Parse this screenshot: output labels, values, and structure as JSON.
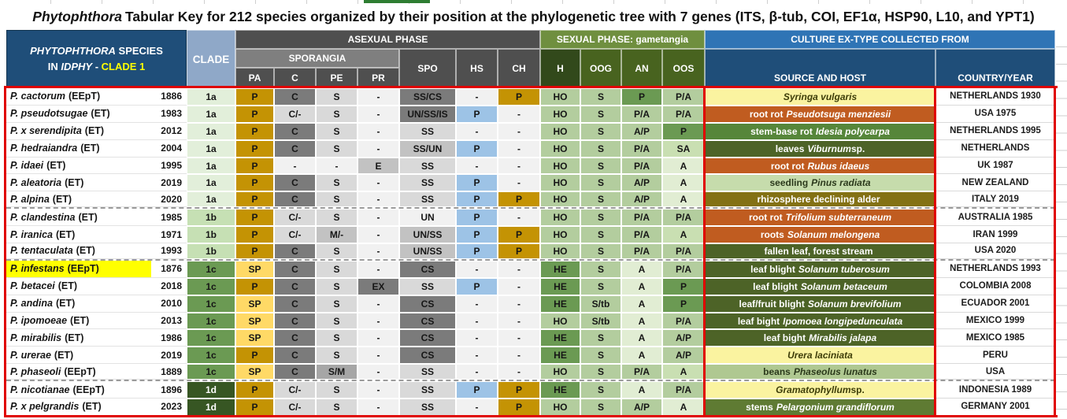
{
  "title": {
    "italic": "Phytophthora",
    "rest": "Tabular Key for 212 species organized by their position at the phylogenetic tree with 7 genes (ITS, β-tub, COI, EF1α, HSP90, L10, and YPT1)"
  },
  "header": {
    "species_block": {
      "line1_italic": "PHYTOPHTHORA",
      "line1_rest": " SPECIES",
      "line2_pre": "IN ",
      "line2_italic": "IDPHY",
      "line2_sep": " - ",
      "line2_clade": "CLADE 1"
    },
    "clade": "CLADE",
    "asexual": "ASEXUAL PHASE",
    "sporangia": "SPORANGIA",
    "cols": {
      "pa": "PA",
      "c": "C",
      "pe": "PE",
      "pr": "PR",
      "spo": "SPO",
      "hs": "HS",
      "ch": "CH",
      "h": "H",
      "oog": "OOG",
      "an": "AN",
      "oos": "OOS"
    },
    "sexual": "SEXUAL PHASE: gametangia",
    "culture": "CULTURE EX-TYPE COLLECTED FROM",
    "source": "SOURCE AND HOST",
    "country": "COUNTRY/YEAR"
  },
  "colors": {
    "red": "#E00000",
    "hl": "#FFFF00",
    "navy": "#1F4E79",
    "steel": "#2F74B5",
    "cladehdr": "#8FA8C8",
    "gdark": "#4F4F4F",
    "gmid": "#7F7F7F",
    "sexband": "#6F8F3F",
    "sexsub": "#48631F",
    "sexh": "#32491B",
    "gold": "#C49304"
  },
  "rows": [
    {
      "name": "P. cactorum",
      "tag": "(EEpT)",
      "year": "1886",
      "clade": "1a",
      "hl": false,
      "sep": false,
      "pa": [
        "P",
        "gold"
      ],
      "c": [
        "C",
        "g1"
      ],
      "pe": [
        "S",
        "g4"
      ],
      "pr": [
        "-",
        "g5"
      ],
      "spo": [
        "SS/CS",
        "g1"
      ],
      "hs": [
        "-",
        "g5"
      ],
      "ch": [
        "P",
        "gold"
      ],
      "h": [
        "HO",
        "gm"
      ],
      "oog": [
        "S",
        "gm"
      ],
      "an": [
        "P",
        "gd"
      ],
      "oos": [
        "P/A",
        "gm"
      ],
      "host": {
        "pre": "",
        "it": "Syringa vulgaris",
        "post": "",
        "style": "h-yel"
      },
      "country": "NETHERLANDS 1930"
    },
    {
      "name": "P. pseudotsugae",
      "tag": "(ET)",
      "year": "1983",
      "clade": "1a",
      "hl": false,
      "sep": false,
      "pa": [
        "P",
        "gold"
      ],
      "c": [
        "C/-",
        "g4"
      ],
      "pe": [
        "S",
        "g4"
      ],
      "pr": [
        "-",
        "g5"
      ],
      "spo": [
        "UN/SS/IS",
        "g1"
      ],
      "hs": [
        "P",
        "blue"
      ],
      "ch": [
        "-",
        "g5"
      ],
      "h": [
        "HO",
        "gm"
      ],
      "oog": [
        "S",
        "gm"
      ],
      "an": [
        "P/A",
        "gm"
      ],
      "oos": [
        "P/A",
        "gm"
      ],
      "host": {
        "pre": "root rot ",
        "it": "Pseudotsuga menziesii",
        "post": "",
        "style": "h-rust"
      },
      "country": "USA 1975"
    },
    {
      "name": "P. x serendipita",
      "tag": "(ET)",
      "year": "2012",
      "clade": "1a",
      "hl": false,
      "sep": false,
      "pa": [
        "P",
        "gold"
      ],
      "c": [
        "C",
        "g1"
      ],
      "pe": [
        "S",
        "g4"
      ],
      "pr": [
        "-",
        "g5"
      ],
      "spo": [
        "SS",
        "g4"
      ],
      "hs": [
        "-",
        "g5"
      ],
      "ch": [
        "-",
        "g5"
      ],
      "h": [
        "HO",
        "gm"
      ],
      "oog": [
        "S",
        "gm"
      ],
      "an": [
        "A/P",
        "gm"
      ],
      "oos": [
        "P",
        "gd"
      ],
      "host": {
        "pre": "stem-base rot ",
        "it": "Idesia polycarpa",
        "post": "",
        "style": "h-gmed"
      },
      "country": "NETHERLANDS 1995"
    },
    {
      "name": "P. hedraiandra",
      "tag": "(ET)",
      "year": "2004",
      "clade": "1a",
      "hl": false,
      "sep": false,
      "pa": [
        "P",
        "gold"
      ],
      "c": [
        "C",
        "g1"
      ],
      "pe": [
        "S",
        "g4"
      ],
      "pr": [
        "-",
        "g5"
      ],
      "spo": [
        "SS/UN",
        "g3"
      ],
      "hs": [
        "P",
        "blue"
      ],
      "ch": [
        "-",
        "g5"
      ],
      "h": [
        "HO",
        "gm"
      ],
      "oog": [
        "S",
        "gm"
      ],
      "an": [
        "P/A",
        "gm"
      ],
      "oos": [
        "SA",
        "gl"
      ],
      "host": {
        "pre": "leaves ",
        "it": "Viburnum",
        "post": " sp.",
        "style": "h-gdk"
      },
      "country": "NETHERLANDS"
    },
    {
      "name": "P. idaei",
      "tag": "(ET)",
      "year": "1995",
      "clade": "1a",
      "hl": false,
      "sep": false,
      "pa": [
        "P",
        "gold"
      ],
      "c": [
        "-",
        "g5"
      ],
      "pe": [
        "-",
        "g5"
      ],
      "pr": [
        "E",
        "g3"
      ],
      "spo": [
        "SS",
        "g4"
      ],
      "hs": [
        "-",
        "g5"
      ],
      "ch": [
        "-",
        "g5"
      ],
      "h": [
        "HO",
        "gm"
      ],
      "oog": [
        "S",
        "gm"
      ],
      "an": [
        "P/A",
        "gm"
      ],
      "oos": [
        "A",
        "gx"
      ],
      "host": {
        "pre": "root rot ",
        "it": "Rubus idaeus",
        "post": "",
        "style": "h-rust"
      },
      "country": "UK 1987"
    },
    {
      "name": "P. aleatoria",
      "tag": "(ET)",
      "year": "2019",
      "clade": "1a",
      "hl": false,
      "sep": false,
      "pa": [
        "P",
        "gold"
      ],
      "c": [
        "C",
        "g1"
      ],
      "pe": [
        "S",
        "g4"
      ],
      "pr": [
        "-",
        "g5"
      ],
      "spo": [
        "SS",
        "g4"
      ],
      "hs": [
        "P",
        "blue"
      ],
      "ch": [
        "-",
        "g5"
      ],
      "h": [
        "HO",
        "gm"
      ],
      "oog": [
        "S",
        "gm"
      ],
      "an": [
        "A/P",
        "gm"
      ],
      "oos": [
        "A",
        "gx"
      ],
      "host": {
        "pre": "seedling ",
        "it": "Pinus radiata",
        "post": "",
        "style": "h-glt"
      },
      "country": "NEW ZEALAND"
    },
    {
      "name": "P. alpina",
      "tag": "(ET)",
      "year": "2020",
      "clade": "1a",
      "hl": false,
      "sep": true,
      "pa": [
        "P",
        "gold"
      ],
      "c": [
        "C",
        "g1"
      ],
      "pe": [
        "S",
        "g4"
      ],
      "pr": [
        "-",
        "g5"
      ],
      "spo": [
        "SS",
        "g4"
      ],
      "hs": [
        "P",
        "blue"
      ],
      "ch": [
        "P",
        "gold"
      ],
      "h": [
        "HO",
        "gm"
      ],
      "oog": [
        "S",
        "gm"
      ],
      "an": [
        "A/P",
        "gm"
      ],
      "oos": [
        "A",
        "gx"
      ],
      "host": {
        "pre": "rhizosphere declining alder",
        "it": "",
        "post": "",
        "style": "h-olv"
      },
      "country": "ITALY 2019"
    },
    {
      "name": "P. clandestina",
      "tag": "(ET)",
      "year": "1985",
      "clade": "1b",
      "hl": false,
      "sep": false,
      "pa": [
        "P",
        "gold"
      ],
      "c": [
        "C/-",
        "g4"
      ],
      "pe": [
        "S",
        "g4"
      ],
      "pr": [
        "-",
        "g5"
      ],
      "spo": [
        "UN",
        "g5"
      ],
      "hs": [
        "P",
        "blue"
      ],
      "ch": [
        "-",
        "g5"
      ],
      "h": [
        "HO",
        "gm"
      ],
      "oog": [
        "S",
        "gm"
      ],
      "an": [
        "P/A",
        "gm"
      ],
      "oos": [
        "P/A",
        "gm"
      ],
      "host": {
        "pre": "root rot ",
        "it": "Trifolium subterraneum",
        "post": "",
        "style": "h-rust"
      },
      "country": "AUSTRALIA 1985"
    },
    {
      "name": "P. iranica",
      "tag": "(ET)",
      "year": "1971",
      "clade": "1b",
      "hl": false,
      "sep": false,
      "pa": [
        "P",
        "gold"
      ],
      "c": [
        "C/-",
        "g4"
      ],
      "pe": [
        "M/-",
        "g3"
      ],
      "pr": [
        "-",
        "g5"
      ],
      "spo": [
        "UN/SS",
        "g3"
      ],
      "hs": [
        "P",
        "blue"
      ],
      "ch": [
        "P",
        "gold"
      ],
      "h": [
        "HO",
        "gm"
      ],
      "oog": [
        "S",
        "gm"
      ],
      "an": [
        "P/A",
        "gm"
      ],
      "oos": [
        "A",
        "gl"
      ],
      "host": {
        "pre": "roots ",
        "it": "Solanum melongena",
        "post": "",
        "style": "h-rust"
      },
      "country": "IRAN 1999"
    },
    {
      "name": "P. tentaculata",
      "tag": "(ET)",
      "year": "1993",
      "clade": "1b",
      "hl": false,
      "sep": true,
      "pa": [
        "P",
        "gold"
      ],
      "c": [
        "C",
        "g1"
      ],
      "pe": [
        "S",
        "g4"
      ],
      "pr": [
        "-",
        "g5"
      ],
      "spo": [
        "UN/SS",
        "g3"
      ],
      "hs": [
        "P",
        "blue"
      ],
      "ch": [
        "P",
        "gold"
      ],
      "h": [
        "HO",
        "gm"
      ],
      "oog": [
        "S",
        "gm"
      ],
      "an": [
        "P/A",
        "gm"
      ],
      "oos": [
        "P/A",
        "gm"
      ],
      "host": {
        "pre": "fallen leaf, forest stream",
        "it": "",
        "post": "",
        "style": "h-gdk"
      },
      "country": "USA 2020"
    },
    {
      "name": "P. infestans",
      "tag": "(EEpT)",
      "year": "1876",
      "clade": "1c",
      "hl": true,
      "sep": false,
      "pa": [
        "SP",
        "lgold"
      ],
      "c": [
        "C",
        "g1"
      ],
      "pe": [
        "S",
        "g4"
      ],
      "pr": [
        "-",
        "g5"
      ],
      "spo": [
        "CS",
        "g1"
      ],
      "hs": [
        "-",
        "g5"
      ],
      "ch": [
        "-",
        "g5"
      ],
      "h": [
        "HE",
        "gd"
      ],
      "oog": [
        "S",
        "gm"
      ],
      "an": [
        "A",
        "gx"
      ],
      "oos": [
        "P/A",
        "gm"
      ],
      "host": {
        "pre": "leaf blight ",
        "it": "Solanum tuberosum",
        "post": "",
        "style": "h-gdk"
      },
      "country": "NETHERLANDS 1993"
    },
    {
      "name": "P. betacei",
      "tag": "(ET)",
      "year": "2018",
      "clade": "1c",
      "hl": false,
      "sep": false,
      "pa": [
        "P",
        "gold"
      ],
      "c": [
        "C",
        "g1"
      ],
      "pe": [
        "S",
        "g4"
      ],
      "pr": [
        "EX",
        "g1"
      ],
      "spo": [
        "SS",
        "g4"
      ],
      "hs": [
        "P",
        "blue"
      ],
      "ch": [
        "-",
        "g5"
      ],
      "h": [
        "HE",
        "gd"
      ],
      "oog": [
        "S",
        "gm"
      ],
      "an": [
        "A",
        "gx"
      ],
      "oos": [
        "P",
        "gd"
      ],
      "host": {
        "pre": "leaf blight ",
        "it": "Solanum betaceum",
        "post": "",
        "style": "h-gdk"
      },
      "country": "COLOMBIA 2008"
    },
    {
      "name": "P. andina",
      "tag": "(ET)",
      "year": "2010",
      "clade": "1c",
      "hl": false,
      "sep": false,
      "pa": [
        "SP",
        "lgold"
      ],
      "c": [
        "C",
        "g1"
      ],
      "pe": [
        "S",
        "g4"
      ],
      "pr": [
        "-",
        "g5"
      ],
      "spo": [
        "CS",
        "g1"
      ],
      "hs": [
        "-",
        "g5"
      ],
      "ch": [
        "-",
        "g5"
      ],
      "h": [
        "HE",
        "gd"
      ],
      "oog": [
        "S/tb",
        "gm"
      ],
      "an": [
        "A",
        "gx"
      ],
      "oos": [
        "P",
        "gd"
      ],
      "host": {
        "pre": "leaf/fruit blight ",
        "it": "Solanum brevifolium",
        "post": "",
        "style": "h-gdk"
      },
      "country": "ECUADOR 2001"
    },
    {
      "name": "P. ipomoeae",
      "tag": "(ET)",
      "year": "2013",
      "clade": "1c",
      "hl": false,
      "sep": false,
      "pa": [
        "SP",
        "lgold"
      ],
      "c": [
        "C",
        "g1"
      ],
      "pe": [
        "S",
        "g4"
      ],
      "pr": [
        "-",
        "g5"
      ],
      "spo": [
        "CS",
        "g1"
      ],
      "hs": [
        "-",
        "g5"
      ],
      "ch": [
        "-",
        "g5"
      ],
      "h": [
        "HO",
        "gm"
      ],
      "oog": [
        "S/tb",
        "gm"
      ],
      "an": [
        "A",
        "gx"
      ],
      "oos": [
        "P/A",
        "gm"
      ],
      "host": {
        "pre": "leaf bight ",
        "it": "Ipomoea longipedunculata",
        "post": "",
        "style": "h-gdk"
      },
      "country": "MEXICO 1999"
    },
    {
      "name": "P. mirabilis",
      "tag": "(ET)",
      "year": "1986",
      "clade": "1c",
      "hl": false,
      "sep": false,
      "pa": [
        "SP",
        "lgold"
      ],
      "c": [
        "C",
        "g1"
      ],
      "pe": [
        "S",
        "g4"
      ],
      "pr": [
        "-",
        "g5"
      ],
      "spo": [
        "CS",
        "g1"
      ],
      "hs": [
        "-",
        "g5"
      ],
      "ch": [
        "-",
        "g5"
      ],
      "h": [
        "HE",
        "gd"
      ],
      "oog": [
        "S",
        "gm"
      ],
      "an": [
        "A",
        "gx"
      ],
      "oos": [
        "A/P",
        "gm"
      ],
      "host": {
        "pre": "leaf bight ",
        "it": "Mirabilis jalapa",
        "post": "",
        "style": "h-gdk"
      },
      "country": "MEXICO 1985"
    },
    {
      "name": "P. urerae",
      "tag": "(ET)",
      "year": "2019",
      "clade": "1c",
      "hl": false,
      "sep": false,
      "pa": [
        "P",
        "gold"
      ],
      "c": [
        "C",
        "g1"
      ],
      "pe": [
        "S",
        "g4"
      ],
      "pr": [
        "-",
        "g5"
      ],
      "spo": [
        "CS",
        "g1"
      ],
      "hs": [
        "-",
        "g5"
      ],
      "ch": [
        "-",
        "g5"
      ],
      "h": [
        "HE",
        "gd"
      ],
      "oog": [
        "S",
        "gm"
      ],
      "an": [
        "A",
        "gx"
      ],
      "oos": [
        "A/P",
        "gm"
      ],
      "host": {
        "pre": "",
        "it": "Urera laciniata",
        "post": "",
        "style": "h-yel"
      },
      "country": "PERU"
    },
    {
      "name": "P. phaseoli",
      "tag": "(EEpT)",
      "year": "1889",
      "clade": "1c",
      "hl": false,
      "sep": true,
      "pa": [
        "SP",
        "lgold"
      ],
      "c": [
        "C",
        "g1"
      ],
      "pe": [
        "S/M",
        "g2"
      ],
      "pr": [
        "-",
        "g5"
      ],
      "spo": [
        "SS",
        "g4"
      ],
      "hs": [
        "-",
        "g5"
      ],
      "ch": [
        "-",
        "g5"
      ],
      "h": [
        "HO",
        "gm"
      ],
      "oog": [
        "S",
        "gm"
      ],
      "an": [
        "P/A",
        "gm"
      ],
      "oos": [
        "A",
        "gl"
      ],
      "host": {
        "pre": "beans ",
        "it": "Phaseolus lunatus",
        "post": "",
        "style": "h-gmd2"
      },
      "country": "USA"
    },
    {
      "name": "P. nicotianae",
      "tag": "(EEpT)",
      "year": "1896",
      "clade": "1d",
      "hl": false,
      "sep": false,
      "pa": [
        "P",
        "gold"
      ],
      "c": [
        "C/-",
        "g4"
      ],
      "pe": [
        "S",
        "g4"
      ],
      "pr": [
        "-",
        "g5"
      ],
      "spo": [
        "SS",
        "g4"
      ],
      "hs": [
        "P",
        "blue"
      ],
      "ch": [
        "P",
        "gold"
      ],
      "h": [
        "HE",
        "gd"
      ],
      "oog": [
        "S",
        "gm"
      ],
      "an": [
        "A",
        "gx"
      ],
      "oos": [
        "P/A",
        "gm"
      ],
      "host": {
        "pre": "",
        "it": "Gramatophyllum",
        "post": " sp.",
        "style": "h-yel"
      },
      "country": "INDONESIA 1989"
    },
    {
      "name": "P. x pelgrandis",
      "tag": "(ET)",
      "year": "2023",
      "clade": "1d",
      "hl": false,
      "sep": false,
      "pa": [
        "P",
        "gold"
      ],
      "c": [
        "C/-",
        "g4"
      ],
      "pe": [
        "S",
        "g4"
      ],
      "pr": [
        "-",
        "g5"
      ],
      "spo": [
        "SS",
        "g4"
      ],
      "hs": [
        "-",
        "g5"
      ],
      "ch": [
        "P",
        "gold"
      ],
      "h": [
        "HO",
        "gm"
      ],
      "oog": [
        "S",
        "gm"
      ],
      "an": [
        "A/P",
        "gm"
      ],
      "oos": [
        "A",
        "gx"
      ],
      "host": {
        "pre": "stems ",
        "it": "Pelargonium grandiflorum",
        "post": "",
        "style": "h-gpel"
      },
      "country": "GERMANY 2001"
    }
  ]
}
